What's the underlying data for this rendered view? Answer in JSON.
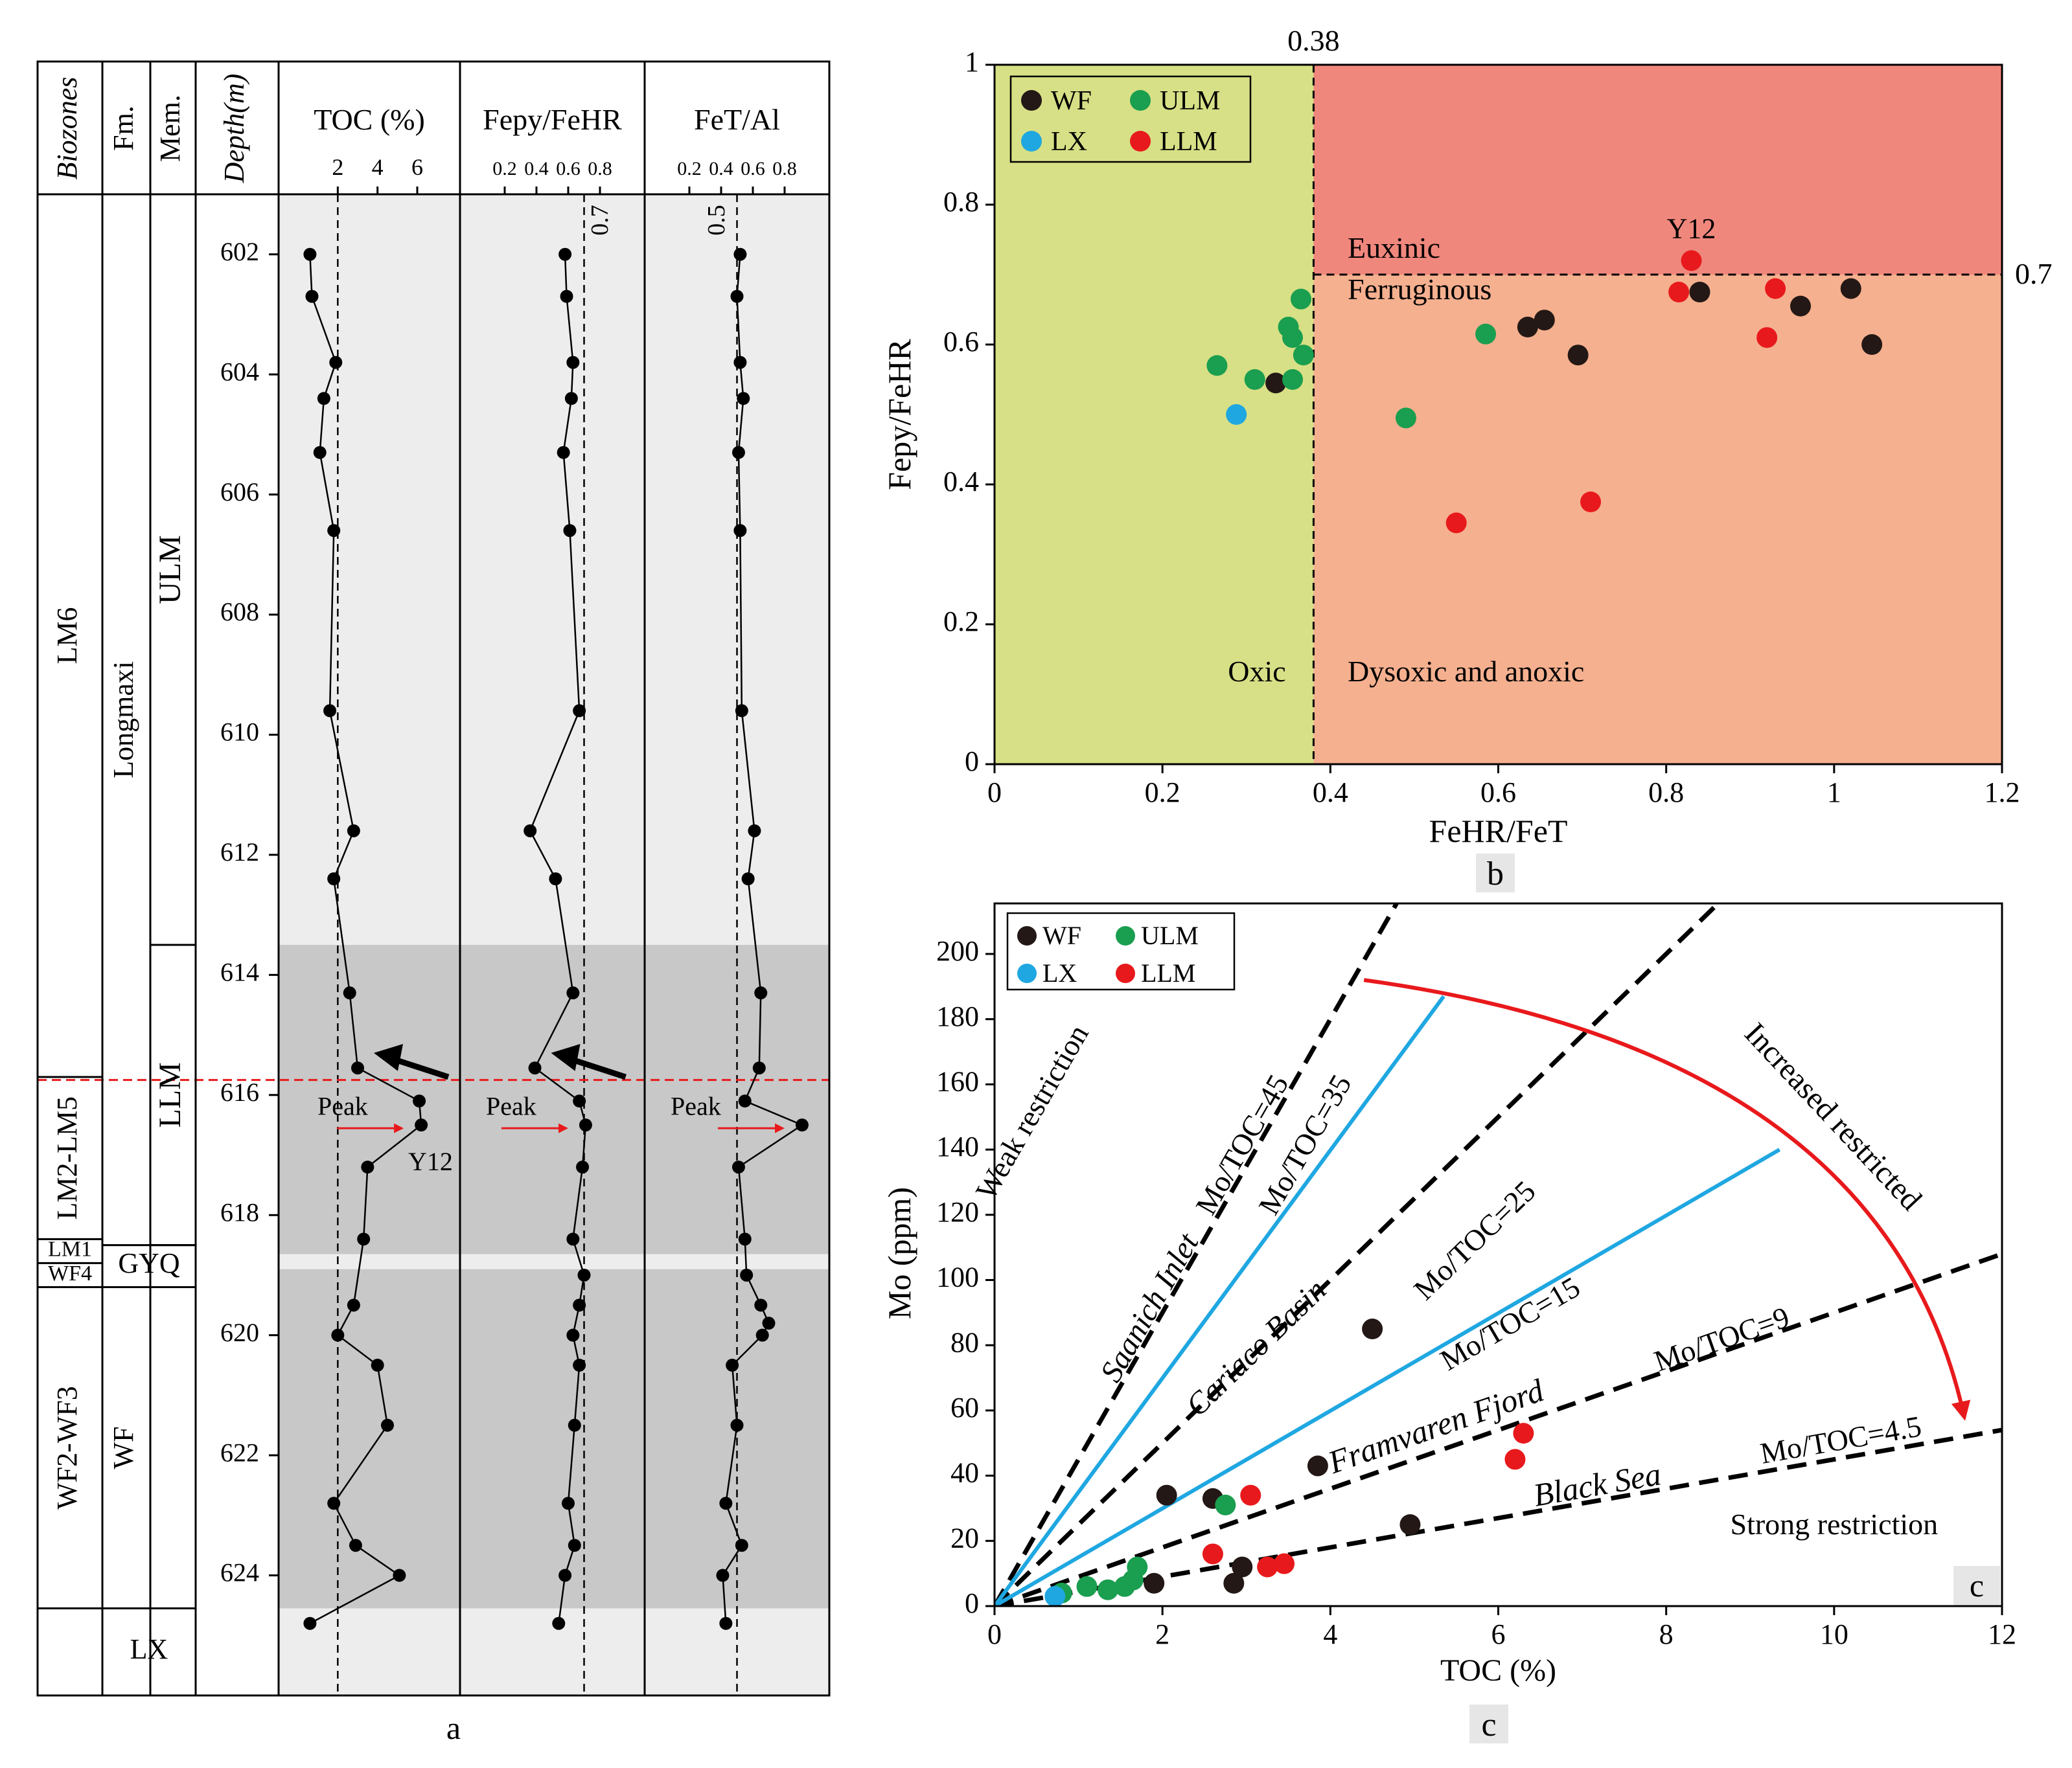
{
  "chart_data": [
    {
      "type": "line",
      "panel_label": "a",
      "column_headers": {
        "biozones": "Biozones",
        "fm": "Fm.",
        "mem": "Mem.",
        "depth": "Depth(m)"
      },
      "depth_ticks": [
        602,
        604,
        606,
        608,
        610,
        612,
        614,
        616,
        618,
        620,
        622,
        624
      ],
      "depth_range": [
        601.0,
        626.0
      ],
      "biozones": [
        {
          "name": "LM6",
          "top": 601.0,
          "bottom": 615.7
        },
        {
          "name": "LM2-LM5",
          "top": 615.7,
          "bottom": 618.4
        },
        {
          "name": "LM1",
          "top": 618.4,
          "bottom": 618.8
        },
        {
          "name": "WF4",
          "top": 618.8,
          "bottom": 619.2
        },
        {
          "name": "WF2-WF3",
          "top": 619.2,
          "bottom": 624.55
        },
        {
          "name": "",
          "top": 624.55,
          "bottom": 626.0
        }
      ],
      "formations": [
        {
          "name": "Longmaxi",
          "top": 601.0,
          "bottom": 618.5
        },
        {
          "name": "GYQ",
          "top": 618.5,
          "bottom": 619.2
        },
        {
          "name": "WF",
          "top": 619.2,
          "bottom": 624.55
        },
        {
          "name": "LX",
          "top": 624.55,
          "bottom": 626.0
        }
      ],
      "members": [
        {
          "name": "ULM",
          "top": 601.0,
          "bottom": 613.5
        },
        {
          "name": "LLM",
          "top": 613.5,
          "bottom": 618.5
        }
      ],
      "shading": [
        {
          "top": 601.0,
          "bottom": 613.5,
          "color": "#ededed"
        },
        {
          "top": 613.5,
          "bottom": 618.65,
          "color": "#c8c8c8"
        },
        {
          "top": 618.65,
          "bottom": 618.9,
          "color": "#ededed"
        },
        {
          "top": 618.9,
          "bottom": 624.55,
          "color": "#c8c8c8"
        },
        {
          "top": 624.55,
          "bottom": 626.0,
          "color": "#ededed"
        }
      ],
      "boundary_depth": 615.75,
      "boundary_color": "#e8191c",
      "peak_label": "Peak",
      "series": [
        {
          "name": "TOC (%)",
          "ticks": [
            2,
            4,
            6
          ],
          "xlim": [
            0,
            7.5
          ],
          "reference": 2,
          "reference_label": "",
          "points": [
            [
              0.6,
              602.0
            ],
            [
              0.7,
              602.7
            ],
            [
              1.9,
              603.8
            ],
            [
              1.3,
              604.4
            ],
            [
              1.1,
              605.3
            ],
            [
              1.8,
              606.6
            ],
            [
              1.6,
              609.6
            ],
            [
              2.8,
              611.6
            ],
            [
              1.8,
              612.4
            ],
            [
              2.6,
              614.3
            ],
            [
              3.0,
              615.55
            ],
            [
              6.1,
              616.1
            ],
            [
              6.2,
              616.5
            ],
            [
              3.5,
              617.2
            ],
            [
              3.3,
              618.4
            ],
            [
              2.8,
              619.5
            ],
            [
              2.0,
              620.0
            ],
            [
              4.0,
              620.5
            ],
            [
              4.5,
              621.5
            ],
            [
              1.8,
              622.8
            ],
            [
              2.9,
              623.5
            ],
            [
              5.1,
              624.0
            ],
            [
              0.6,
              624.8
            ]
          ]
        },
        {
          "name": "Fepy/FeHR",
          "ticks": [
            0.2,
            0.4,
            0.6,
            0.8
          ],
          "xlim": [
            0,
            1.0
          ],
          "reference": 0.7,
          "reference_label": "0.7",
          "points": [
            [
              0.58,
              602.0
            ],
            [
              0.59,
              602.7
            ],
            [
              0.63,
              603.8
            ],
            [
              0.62,
              604.4
            ],
            [
              0.57,
              605.3
            ],
            [
              0.61,
              606.6
            ],
            [
              0.67,
              609.6
            ],
            [
              0.36,
              611.6
            ],
            [
              0.52,
              612.4
            ],
            [
              0.63,
              614.3
            ],
            [
              0.39,
              615.55
            ],
            [
              0.67,
              616.1
            ],
            [
              0.71,
              616.5
            ],
            [
              0.69,
              617.2
            ],
            [
              0.63,
              618.4
            ],
            [
              0.7,
              619.0
            ],
            [
              0.67,
              619.5
            ],
            [
              0.63,
              620.0
            ],
            [
              0.67,
              620.5
            ],
            [
              0.64,
              621.5
            ],
            [
              0.6,
              622.8
            ],
            [
              0.64,
              623.5
            ],
            [
              0.58,
              624.0
            ],
            [
              0.54,
              624.8
            ]
          ]
        },
        {
          "name": "FeT/Al",
          "ticks": [
            0.2,
            0.4,
            0.6,
            0.8
          ],
          "xlim": [
            0,
            1.0
          ],
          "reference": 0.5,
          "reference_label": "0.5",
          "points": [
            [
              0.52,
              602.0
            ],
            [
              0.5,
              602.7
            ],
            [
              0.52,
              603.8
            ],
            [
              0.54,
              604.4
            ],
            [
              0.51,
              605.3
            ],
            [
              0.52,
              606.6
            ],
            [
              0.53,
              609.6
            ],
            [
              0.61,
              611.6
            ],
            [
              0.57,
              612.4
            ],
            [
              0.65,
              614.3
            ],
            [
              0.64,
              615.55
            ],
            [
              0.55,
              616.1
            ],
            [
              0.91,
              616.5
            ],
            [
              0.51,
              617.2
            ],
            [
              0.55,
              618.4
            ],
            [
              0.56,
              619.0
            ],
            [
              0.65,
              619.5
            ],
            [
              0.7,
              619.8
            ],
            [
              0.66,
              620.0
            ],
            [
              0.47,
              620.5
            ],
            [
              0.5,
              621.5
            ],
            [
              0.43,
              622.8
            ],
            [
              0.53,
              623.5
            ],
            [
              0.41,
              624.0
            ],
            [
              0.43,
              624.8
            ]
          ]
        }
      ],
      "annotations": [
        {
          "text": "Y12",
          "depth": 617.1
        }
      ]
    },
    {
      "type": "scatter",
      "panel_label": "b",
      "xlabel": "FeHR/FeT",
      "ylabel": "Fepy/FeHR",
      "xlim": [
        0,
        1.2
      ],
      "ylim": [
        0,
        1.0
      ],
      "xticks": [
        0,
        0.2,
        0.4,
        0.6,
        0.8,
        1.0,
        1.2
      ],
      "yticks": [
        0,
        0.2,
        0.4,
        0.6,
        0.8,
        1.0
      ],
      "x_threshold": 0.38,
      "x_threshold_label": "0.38",
      "y_threshold": 0.7,
      "y_threshold_label": "0.7",
      "regions": [
        {
          "name": "Oxic",
          "color": "#d7e086"
        },
        {
          "name": "Euxinic",
          "color": "#f0877d"
        },
        {
          "name": "Ferruginous",
          "color": "#f5b08f"
        },
        {
          "name": "Dysoxic and anoxic",
          "color": "#f5b08f"
        }
      ],
      "legend_position": "top-left",
      "series": [
        {
          "name": "WF",
          "color": "#231815",
          "points": [
            [
              0.335,
              0.545
            ],
            [
              0.635,
              0.625
            ],
            [
              0.655,
              0.635
            ],
            [
              0.695,
              0.585
            ],
            [
              0.84,
              0.675
            ],
            [
              0.96,
              0.655
            ],
            [
              1.02,
              0.68
            ],
            [
              1.045,
              0.6
            ]
          ]
        },
        {
          "name": "ULM",
          "color": "#1a9e4f",
          "points": [
            [
              0.265,
              0.57
            ],
            [
              0.31,
              0.55
            ],
            [
              0.35,
              0.625
            ],
            [
              0.355,
              0.61
            ],
            [
              0.355,
              0.55
            ],
            [
              0.365,
              0.665
            ],
            [
              0.368,
              0.585
            ],
            [
              0.49,
              0.495
            ],
            [
              0.585,
              0.615
            ]
          ]
        },
        {
          "name": "LX",
          "color": "#1fa7e1",
          "points": [
            [
              0.288,
              0.5
            ]
          ]
        },
        {
          "name": "LLM",
          "color": "#e8191c",
          "points": [
            [
              0.55,
              0.345
            ],
            [
              0.71,
              0.375
            ],
            [
              0.815,
              0.675
            ],
            [
              0.83,
              0.72
            ],
            [
              0.92,
              0.61
            ],
            [
              0.93,
              0.68
            ]
          ]
        }
      ],
      "annotations": [
        {
          "text": "Y12",
          "x": 0.83,
          "y": 0.72
        }
      ]
    },
    {
      "type": "scatter",
      "panel_label": "c",
      "xlabel": "TOC (%)",
      "ylabel": "Mo (ppm)",
      "xlim": [
        0,
        12
      ],
      "ylim": [
        0,
        200
      ],
      "xticks": [
        0,
        2,
        4,
        6,
        8,
        10,
        12
      ],
      "yticks": [
        0,
        20,
        40,
        60,
        80,
        100,
        120,
        140,
        160,
        180,
        200
      ],
      "legend_position": "top-left",
      "reference_lines": [
        {
          "label": "Mo/TOC=45",
          "slope": 45,
          "basin": "Saanich Inlet"
        },
        {
          "label": "Mo/TOC=25",
          "slope": 25,
          "basin": "Cariaco Basin"
        },
        {
          "label": "Mo/TOC=9",
          "slope": 9,
          "basin": "Framvaren Fjord"
        },
        {
          "label": "Mo/TOC=4.5",
          "slope": 4.5,
          "basin": "Black Sea"
        }
      ],
      "highlight_lines": [
        {
          "label": "Mo/TOC=35",
          "slope": 35
        },
        {
          "label": "Mo/TOC=15",
          "slope": 15
        }
      ],
      "highlight_color": "#1fa7e1",
      "arrow_color": "#e8191c",
      "texts": {
        "weak": "Weak restriction",
        "increased": "Increased restricted",
        "strong": "Strong restriction"
      },
      "series": [
        {
          "name": "WF",
          "color": "#231815",
          "points": [
            [
              1.9,
              7
            ],
            [
              2.05,
              34
            ],
            [
              2.6,
              33
            ],
            [
              2.85,
              7
            ],
            [
              2.95,
              12
            ],
            [
              3.85,
              43
            ],
            [
              4.5,
              85
            ],
            [
              4.95,
              25
            ]
          ]
        },
        {
          "name": "ULM",
          "color": "#1a9e4f",
          "points": [
            [
              0.8,
              4
            ],
            [
              1.1,
              6
            ],
            [
              1.35,
              5
            ],
            [
              1.55,
              6
            ],
            [
              1.65,
              8
            ],
            [
              1.7,
              12
            ],
            [
              2.75,
              31
            ]
          ]
        },
        {
          "name": "LX",
          "color": "#1fa7e1",
          "points": [
            [
              0.72,
              3
            ]
          ]
        },
        {
          "name": "LLM",
          "color": "#e8191c",
          "points": [
            [
              2.6,
              16
            ],
            [
              3.05,
              34
            ],
            [
              3.25,
              12
            ],
            [
              3.45,
              13
            ],
            [
              6.2,
              45
            ],
            [
              6.3,
              53
            ]
          ]
        }
      ]
    }
  ]
}
